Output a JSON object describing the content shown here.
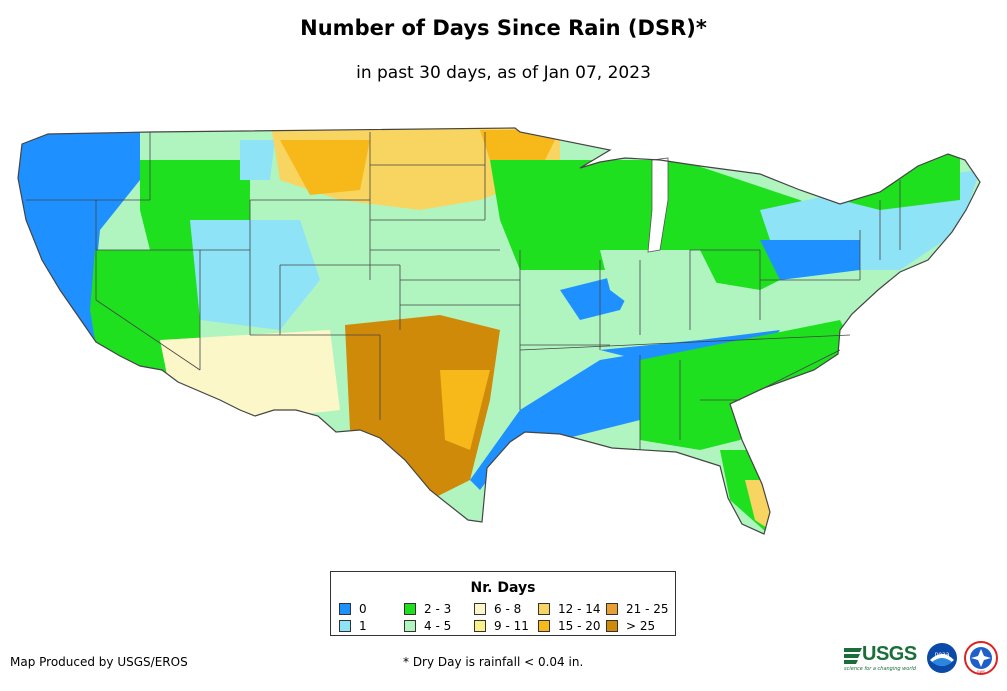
{
  "title": "Number of Days Since Rain (DSR)*",
  "subtitle": "in past 30 days, as of Jan 07, 2023",
  "legend": {
    "title": "Nr. Days",
    "items": [
      {
        "label": "0",
        "color": "#1e90ff"
      },
      {
        "label": "1",
        "color": "#8fe3f7"
      },
      {
        "label": "2 - 3",
        "color": "#1ee01e"
      },
      {
        "label": "4 - 5",
        "color": "#b0f5c0"
      },
      {
        "label": "6 - 8",
        "color": "#fbf7c8"
      },
      {
        "label": "9 - 11",
        "color": "#fbef8a"
      },
      {
        "label": "12 - 14",
        "color": "#f7d560"
      },
      {
        "label": "15 - 20",
        "color": "#f7b81a"
      },
      {
        "label": "21 - 25",
        "color": "#e8a032"
      },
      {
        "label": "> 25",
        "color": "#d08a0a"
      }
    ]
  },
  "footer": {
    "credit": "Map Produced by USGS/EROS",
    "note": "* Dry Day is rainfall < 0.04 in."
  },
  "logos": {
    "usgs": "USGS",
    "usgs_tagline": "science for a changing world",
    "noaa": "noaa",
    "nws": "nws"
  }
}
